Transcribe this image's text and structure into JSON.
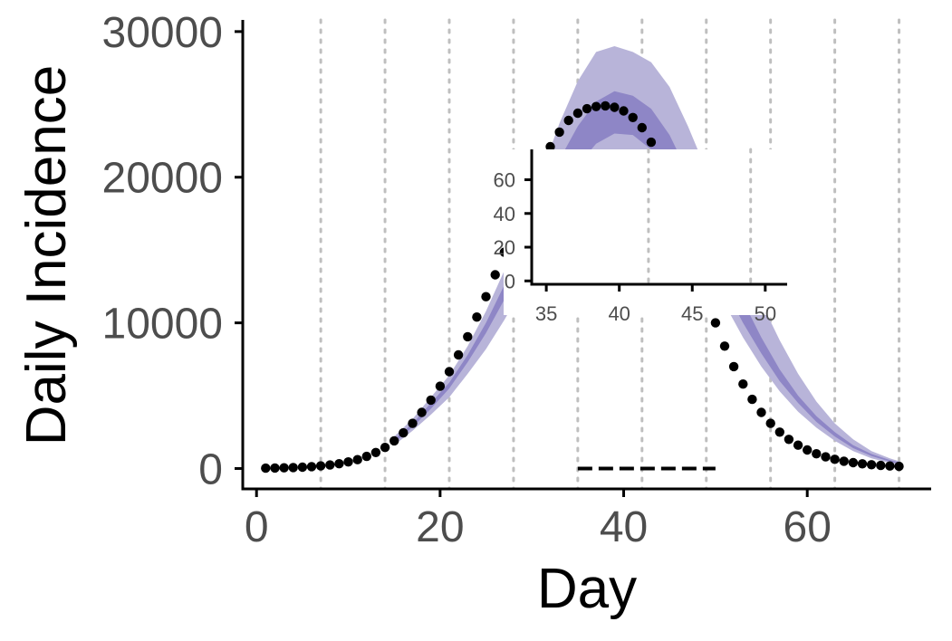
{
  "chart_data": [
    {
      "type": "line",
      "xlabel": "Day",
      "ylabel": "Daily Incidence",
      "xlim": [
        -1.5,
        73.5
      ],
      "ylim": [
        -1400,
        30800
      ],
      "xticks": [
        0,
        20,
        40,
        60
      ],
      "yticks": [
        0,
        10000,
        20000,
        30000
      ],
      "xtick_labels": [
        "0",
        "20",
        "40",
        "60"
      ],
      "ytick_labels": [
        "0",
        "10000",
        "20000",
        "30000"
      ],
      "vgrid": [
        7,
        14,
        21,
        28,
        35,
        42,
        49,
        56,
        63,
        70
      ],
      "grid": "vertical dotted",
      "colors": {
        "outer_band": "#b8b4d9",
        "inner_band": "#8e86c6",
        "points": "#000000",
        "grid": "#bfbfbf"
      },
      "series": [
        {
          "kind": "points",
          "x": [
            1,
            2,
            3,
            4,
            5,
            6,
            7,
            8,
            9,
            10,
            11,
            12,
            13,
            14,
            15,
            16,
            17,
            18,
            19,
            20,
            21,
            22,
            23,
            24,
            25,
            26,
            27,
            28,
            29,
            30,
            31,
            32,
            33,
            34,
            35,
            36,
            37,
            38,
            39,
            40,
            41,
            42,
            43,
            44,
            45,
            46,
            47,
            48,
            49,
            50,
            51,
            52,
            53,
            54,
            55,
            56,
            57,
            58,
            59,
            60,
            61,
            62,
            63,
            64,
            65,
            66,
            67,
            68,
            69,
            70
          ],
          "y": [
            25,
            35,
            50,
            70,
            95,
            130,
            180,
            240,
            330,
            450,
            610,
            830,
            1100,
            1450,
            1900,
            2450,
            3100,
            3850,
            4700,
            5650,
            6650,
            7800,
            9050,
            10400,
            11800,
            13300,
            14850,
            16400,
            18000,
            19500,
            20900,
            22100,
            23100,
            23900,
            24400,
            24700,
            24850,
            24900,
            24800,
            24550,
            24100,
            23400,
            22400,
            21100,
            19500,
            17700,
            15700,
            13700,
            11800,
            10000,
            8400,
            7000,
            5800,
            4750,
            3850,
            3100,
            2500,
            2000,
            1600,
            1270,
            1010,
            800,
            630,
            500,
            400,
            320,
            260,
            210,
            170,
            150
          ]
        },
        {
          "kind": "band",
          "name": "outer",
          "x": [
            15,
            17,
            19,
            21,
            23,
            25,
            27,
            29,
            31,
            33,
            35,
            37,
            39,
            41,
            43,
            45,
            47,
            49,
            51,
            53,
            55,
            57,
            59,
            61,
            63,
            65,
            67,
            69,
            70
          ],
          "lower": [
            1600,
            2600,
            3700,
            4900,
            6500,
            8200,
            10200,
            12400,
            14500,
            16600,
            18400,
            19900,
            20800,
            20900,
            20200,
            18700,
            16500,
            13900,
            11300,
            9000,
            7000,
            5300,
            3900,
            2800,
            1900,
            1200,
            700,
            380,
            250
          ],
          "upper": [
            2200,
            3400,
            4900,
            6400,
            8400,
            10800,
            13600,
            16800,
            20200,
            23700,
            26600,
            28600,
            29000,
            28600,
            27900,
            26200,
            23500,
            20500,
            17300,
            14300,
            11400,
            8800,
            6500,
            4600,
            3100,
            2000,
            1200,
            700,
            500
          ]
        },
        {
          "kind": "band",
          "name": "inner",
          "x": [
            15,
            17,
            19,
            21,
            23,
            25,
            27,
            29,
            31,
            33,
            35,
            37,
            39,
            41,
            43,
            45,
            47,
            49,
            51,
            53,
            55,
            57,
            59,
            61,
            63,
            65,
            67,
            69,
            70
          ],
          "lower": [
            1750,
            2850,
            4100,
            5500,
            7300,
            9300,
            11600,
            14100,
            16500,
            18800,
            20800,
            22300,
            23000,
            22900,
            21900,
            20200,
            17800,
            15100,
            12400,
            10000,
            7900,
            6000,
            4500,
            3200,
            2200,
            1400,
            850,
            480,
            330
          ],
          "upper": [
            2000,
            3100,
            4500,
            5900,
            7800,
            10000,
            12600,
            15400,
            18300,
            21200,
            23500,
            25200,
            25900,
            25600,
            24700,
            22900,
            20300,
            17400,
            14400,
            11500,
            9000,
            6800,
            5000,
            3600,
            2500,
            1600,
            1000,
            580,
            420
          ]
        },
        {
          "kind": "dashed-line",
          "x": [
            35,
            50
          ],
          "y": [
            0,
            0
          ]
        }
      ]
    },
    {
      "type": "line",
      "role": "inset",
      "xlim": [
        34,
        51.5
      ],
      "ylim": [
        -2,
        78
      ],
      "xticks": [
        35,
        40,
        45,
        50
      ],
      "yticks": [
        0,
        20,
        40,
        60
      ],
      "xtick_labels": [
        "35",
        "40",
        "45",
        "50"
      ],
      "ytick_labels": [
        "0",
        "20",
        "40",
        "60"
      ],
      "vgrid": [
        42,
        49
      ],
      "grid": "vertical dotted",
      "series": []
    }
  ]
}
